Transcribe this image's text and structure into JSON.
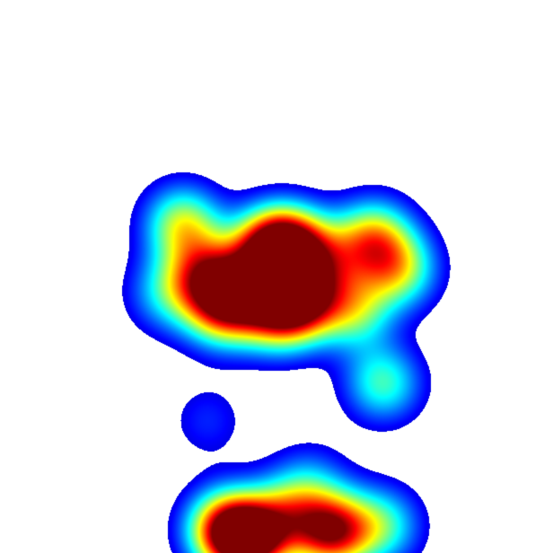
{
  "chart_data": {
    "type": "heatmap",
    "colormap": "jet",
    "background": "#ffffff",
    "title": "",
    "xlabel": "",
    "ylabel": "",
    "grid": false,
    "legend": "none",
    "hotspots": [
      {
        "x": 0.33,
        "y": 0.405,
        "intensity": 0.55
      },
      {
        "x": 0.372,
        "y": 0.495,
        "intensity": 0.62
      },
      {
        "x": 0.402,
        "y": 0.557,
        "intensity": 0.68
      },
      {
        "x": 0.485,
        "y": 0.446,
        "intensity": 0.72
      },
      {
        "x": 0.528,
        "y": 0.446,
        "intensity": 0.8
      },
      {
        "x": 0.545,
        "y": 0.54,
        "intensity": 0.82
      },
      {
        "x": 0.5,
        "y": 0.566,
        "intensity": 0.58
      },
      {
        "x": 0.45,
        "y": 0.52,
        "intensity": 0.48
      },
      {
        "x": 0.64,
        "y": 0.56,
        "intensity": 0.45
      },
      {
        "x": 0.675,
        "y": 0.43,
        "intensity": 0.58
      },
      {
        "x": 0.72,
        "y": 0.487,
        "intensity": 0.5
      },
      {
        "x": 0.6,
        "y": 0.47,
        "intensity": 0.34
      },
      {
        "x": 0.3,
        "y": 0.53,
        "intensity": 0.3
      },
      {
        "x": 0.692,
        "y": 0.692,
        "intensity": 0.42
      },
      {
        "x": 0.375,
        "y": 0.76,
        "intensity": 0.14
      },
      {
        "x": 0.45,
        "y": 0.975,
        "intensity": 1.0
      },
      {
        "x": 0.405,
        "y": 0.955,
        "intensity": 0.7
      },
      {
        "x": 0.6,
        "y": 0.96,
        "intensity": 0.88
      },
      {
        "x": 0.52,
        "y": 0.93,
        "intensity": 0.45
      },
      {
        "x": 0.69,
        "y": 0.95,
        "intensity": 0.4
      },
      {
        "x": 0.56,
        "y": 0.87,
        "intensity": 0.2
      }
    ]
  }
}
